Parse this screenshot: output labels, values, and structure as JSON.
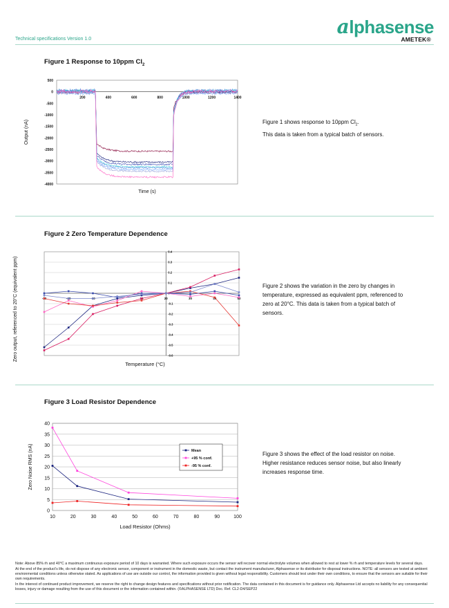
{
  "header": {
    "subtitle": "Technical specifications Version 1.0",
    "logo_lead": "a",
    "logo_word": "lphasense",
    "logo_parent": "AMETEK®"
  },
  "fig1": {
    "title": "Figure 1 Response to 10ppm Cl",
    "title_sub": "2",
    "desc_line1": "Figure 1 shows response to 10ppm Cl",
    "desc_sub": "2",
    "desc_line1_end": ".",
    "desc_line2": "This data is taken from a typical batch of sensors."
  },
  "fig2": {
    "title": "Figure 2  Zero Temperature Dependence",
    "desc": "Figure 2 shows the variation in the zero by changes in temperature, expressed as equivalent ppm, referenced to zero at 20°C. This data is taken from a typical batch of sensors."
  },
  "fig3": {
    "title": "Figure 3 Load Resistor Dependence",
    "desc": "Figure 3 shows the effect of the load resistor on noise. Higher resistance reduces sensor noise, but also linearly increases response time."
  },
  "chart_data": [
    {
      "type": "line",
      "title": "",
      "xlabel": "Time (s)",
      "ylabel": "Output (nA)",
      "xlim": [
        0,
        1400
      ],
      "ylim": [
        -4000,
        500
      ],
      "x_ticks": [
        "200",
        "400",
        "600",
        "800",
        "1000",
        "1200",
        "1400"
      ],
      "y_ticks": [
        "500",
        "0",
        "-500",
        "-1000",
        "-1500",
        "-2000",
        "-2500",
        "-3000",
        "-3500",
        "-4000"
      ],
      "gas_on_s": 300,
      "gas_off_s": 900,
      "series": [
        {
          "color": "#8b1040",
          "baseline": -20,
          "plateau": -2580,
          "peak": -1850
        },
        {
          "color": "#1a237e",
          "baseline": 0,
          "plateau": -3050,
          "peak": -2100
        },
        {
          "color": "#3f51b5",
          "baseline": 30,
          "plateau": -3150,
          "peak": -2200
        },
        {
          "color": "#5c8de0",
          "baseline": 60,
          "plateau": -3300,
          "peak": -2350
        },
        {
          "color": "#7fb0ff",
          "baseline": -60,
          "plateau": -3380,
          "peak": -2450
        },
        {
          "color": "#4dd0e1",
          "baseline": 40,
          "plateau": -3250,
          "peak": -2300
        },
        {
          "color": "#9fa8da",
          "baseline": -40,
          "plateau": -3450,
          "peak": -2550
        },
        {
          "color": "#ff66c4",
          "baseline": 20,
          "plateau": -3700,
          "peak": -2900
        }
      ]
    },
    {
      "type": "line",
      "title": "",
      "xlabel": "Temperature (°C)",
      "ylabel": "Zero output, referenced to 20°C (equivalent ppm)",
      "xlim": [
        -30,
        50
      ],
      "ylim": [
        -0.6,
        0.4
      ],
      "x_ticks": [
        "-30",
        "-20",
        "-10",
        "0",
        "10",
        "20",
        "30",
        "40",
        "50"
      ],
      "y_ticks": [
        "0.4",
        "0.3",
        "0.2",
        "0.1",
        "0",
        "-0.1",
        "-0.2",
        "-0.3",
        "-0.4",
        "-0.5",
        "-0.6"
      ],
      "x": [
        -30,
        -20,
        -10,
        0,
        10,
        20,
        30,
        40,
        50
      ],
      "series": [
        {
          "color": "#1a237e",
          "values": [
            -0.52,
            -0.33,
            -0.12,
            -0.05,
            -0.02,
            0.0,
            0.05,
            0.09,
            0.15
          ]
        },
        {
          "color": "#d81b60",
          "values": [
            -0.55,
            -0.44,
            -0.2,
            -0.12,
            -0.05,
            0.0,
            0.06,
            0.17,
            0.23
          ]
        },
        {
          "color": "#ff66c4",
          "values": [
            -0.18,
            -0.07,
            -0.13,
            -0.07,
            0.02,
            0.0,
            -0.03,
            0.0,
            -0.04
          ]
        },
        {
          "color": "#e53935",
          "values": [
            -0.05,
            -0.1,
            -0.12,
            -0.09,
            -0.07,
            0.0,
            0.02,
            -0.04,
            -0.31
          ]
        },
        {
          "color": "#3949ab",
          "values": [
            0.0,
            0.02,
            0.0,
            -0.04,
            0.0,
            0.0,
            -0.01,
            0.02,
            -0.02
          ]
        },
        {
          "color": "#7986cb",
          "values": [
            -0.02,
            -0.05,
            -0.05,
            -0.03,
            -0.01,
            0.0,
            0.01,
            0.09,
            0.01
          ]
        }
      ]
    },
    {
      "type": "line",
      "title": "",
      "xlabel": "Load Resistor (Ohms)",
      "ylabel": "Zero Noise RMS (nA)",
      "xlim": [
        10,
        100
      ],
      "ylim": [
        0,
        40
      ],
      "x_ticks": [
        "10",
        "20",
        "30",
        "40",
        "50",
        "60",
        "70",
        "80",
        "90",
        "100"
      ],
      "y_ticks": [
        "40",
        "35",
        "30",
        "25",
        "20",
        "15",
        "10",
        "5",
        "0"
      ],
      "legend": "top-right",
      "x": [
        10,
        22,
        47,
        100
      ],
      "series": [
        {
          "name": "Mean",
          "color": "#1a237e",
          "values": [
            20.5,
            11.2,
            5.2,
            3.8
          ]
        },
        {
          "name": "+95 % conf.",
          "color": "#ff44dd",
          "values": [
            38.0,
            18.2,
            8.2,
            5.6
          ]
        },
        {
          "name": "-95 % conf.",
          "color": "#ee2222",
          "values": [
            3.5,
            4.3,
            2.6,
            2.0
          ]
        }
      ]
    }
  ],
  "footer": {
    "p1": "Note:  Above 85% rh and 40°C a maximum continuous exposure period of 10 days is warranted.  Where such exposure occurs the sensor will recover normal electrolyte volumes when allowed to rest at lower % rh and temperature levels for several days.",
    "p2": "At the end of the product’s life, do not dispose of any electronic sensor, component or instrument in the domestic waste, but contact the instrument manufacturer, Alphasense or its distributor for disposal instructions. NOTE: all sensors are tested at ambient environmental conditions unless otherwise stated. As applications of use are outside our control, the information provided is given without legal responsibility. Customers should test under their own conditions, to ensure that the sensors are suitable for their own requirements.",
    "p3": "In the interest of continued product improvement, we reserve the right to change design features and specifications without prior notification. The data contained in this document is for guidance only. Alphasense Ltd accepts no liability for any consequential losses, injury or damage resulting from the use of this document or the information contained within. (©ALPHASENSE LTD) Doc. Ref. CL2-D4/SEP22"
  },
  "colors": {
    "brand": "#2aa58a",
    "rule": "#a9d8c9"
  }
}
